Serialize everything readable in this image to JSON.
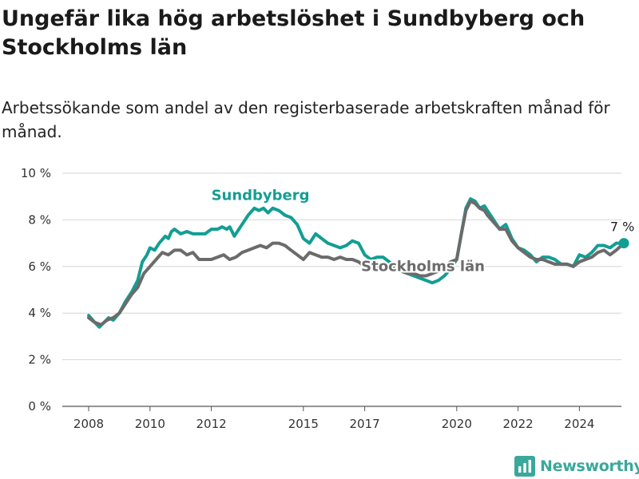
{
  "title": "Ungefär lika hög arbetslöshet i Sundbyberg och Stockholms län",
  "subtitle": "Arbetssökande som andel av den registerbaserade arbetskraften månad för månad.",
  "brand": {
    "name": "Newsworthy",
    "color": "#3aa89a"
  },
  "chart_data": {
    "type": "line",
    "ylim": [
      0,
      10
    ],
    "xlim": [
      2008,
      2025
    ],
    "y_ticks": [
      {
        "value": 0,
        "label": "0 %"
      },
      {
        "value": 2,
        "label": "2 %"
      },
      {
        "value": 4,
        "label": "4 %"
      },
      {
        "value": 6,
        "label": "6 %"
      },
      {
        "value": 8,
        "label": "8 %"
      },
      {
        "value": 10,
        "label": "10 %"
      }
    ],
    "x_ticks": [
      {
        "value": 2008,
        "label": "2008"
      },
      {
        "value": 2010,
        "label": "2010"
      },
      {
        "value": 2012,
        "label": "2012"
      },
      {
        "value": 2015,
        "label": "2015"
      },
      {
        "value": 2017,
        "label": "2017"
      },
      {
        "value": 2020,
        "label": "2020"
      },
      {
        "value": 2022,
        "label": "2022"
      },
      {
        "value": 2024,
        "label": "2024"
      }
    ],
    "grid": true,
    "end_label": "7 %",
    "series": [
      {
        "name": "Sundbyberg",
        "color": "#139e93",
        "points": [
          [
            2008.0,
            3.9
          ],
          [
            2008.2,
            3.6
          ],
          [
            2008.35,
            3.4
          ],
          [
            2008.5,
            3.6
          ],
          [
            2008.65,
            3.8
          ],
          [
            2008.8,
            3.7
          ],
          [
            2009.0,
            4.0
          ],
          [
            2009.2,
            4.5
          ],
          [
            2009.4,
            4.9
          ],
          [
            2009.6,
            5.4
          ],
          [
            2009.75,
            6.2
          ],
          [
            2009.9,
            6.5
          ],
          [
            2010.0,
            6.8
          ],
          [
            2010.15,
            6.7
          ],
          [
            2010.3,
            7.0
          ],
          [
            2010.5,
            7.3
          ],
          [
            2010.6,
            7.2
          ],
          [
            2010.7,
            7.5
          ],
          [
            2010.8,
            7.6
          ],
          [
            2011.0,
            7.4
          ],
          [
            2011.2,
            7.5
          ],
          [
            2011.4,
            7.4
          ],
          [
            2011.6,
            7.4
          ],
          [
            2011.8,
            7.4
          ],
          [
            2012.0,
            7.6
          ],
          [
            2012.2,
            7.6
          ],
          [
            2012.35,
            7.7
          ],
          [
            2012.5,
            7.6
          ],
          [
            2012.6,
            7.7
          ],
          [
            2012.75,
            7.3
          ],
          [
            2013.0,
            7.8
          ],
          [
            2013.2,
            8.2
          ],
          [
            2013.4,
            8.5
          ],
          [
            2013.55,
            8.4
          ],
          [
            2013.7,
            8.5
          ],
          [
            2013.85,
            8.3
          ],
          [
            2014.0,
            8.5
          ],
          [
            2014.2,
            8.4
          ],
          [
            2014.4,
            8.2
          ],
          [
            2014.6,
            8.1
          ],
          [
            2014.8,
            7.8
          ],
          [
            2015.0,
            7.2
          ],
          [
            2015.2,
            7.0
          ],
          [
            2015.4,
            7.4
          ],
          [
            2015.6,
            7.2
          ],
          [
            2015.8,
            7.0
          ],
          [
            2016.0,
            6.9
          ],
          [
            2016.2,
            6.8
          ],
          [
            2016.4,
            6.9
          ],
          [
            2016.6,
            7.1
          ],
          [
            2016.8,
            7.0
          ],
          [
            2017.0,
            6.5
          ],
          [
            2017.2,
            6.3
          ],
          [
            2017.4,
            6.4
          ],
          [
            2017.6,
            6.4
          ],
          [
            2017.8,
            6.2
          ],
          [
            2018.0,
            6.0
          ],
          [
            2018.2,
            5.8
          ],
          [
            2018.4,
            5.7
          ],
          [
            2018.6,
            5.6
          ],
          [
            2018.8,
            5.5
          ],
          [
            2019.0,
            5.4
          ],
          [
            2019.2,
            5.3
          ],
          [
            2019.4,
            5.4
          ],
          [
            2019.6,
            5.6
          ],
          [
            2019.8,
            5.9
          ],
          [
            2020.0,
            6.3
          ],
          [
            2020.15,
            7.4
          ],
          [
            2020.3,
            8.5
          ],
          [
            2020.45,
            8.9
          ],
          [
            2020.6,
            8.8
          ],
          [
            2020.75,
            8.5
          ],
          [
            2020.9,
            8.6
          ],
          [
            2021.0,
            8.4
          ],
          [
            2021.2,
            8.0
          ],
          [
            2021.4,
            7.6
          ],
          [
            2021.6,
            7.8
          ],
          [
            2021.8,
            7.2
          ],
          [
            2022.0,
            6.8
          ],
          [
            2022.2,
            6.7
          ],
          [
            2022.4,
            6.5
          ],
          [
            2022.6,
            6.2
          ],
          [
            2022.8,
            6.4
          ],
          [
            2023.0,
            6.4
          ],
          [
            2023.2,
            6.3
          ],
          [
            2023.4,
            6.1
          ],
          [
            2023.6,
            6.1
          ],
          [
            2023.8,
            6.0
          ],
          [
            2024.0,
            6.5
          ],
          [
            2024.2,
            6.4
          ],
          [
            2024.4,
            6.6
          ],
          [
            2024.6,
            6.9
          ],
          [
            2024.8,
            6.9
          ],
          [
            2025.0,
            6.8
          ],
          [
            2025.2,
            7.0
          ],
          [
            2025.45,
            7.0
          ]
        ]
      },
      {
        "name": "Stockholms län",
        "color": "#6b6b6b",
        "points": [
          [
            2008.0,
            3.8
          ],
          [
            2008.2,
            3.6
          ],
          [
            2008.4,
            3.5
          ],
          [
            2008.6,
            3.7
          ],
          [
            2008.8,
            3.8
          ],
          [
            2009.0,
            4.0
          ],
          [
            2009.2,
            4.4
          ],
          [
            2009.4,
            4.8
          ],
          [
            2009.6,
            5.1
          ],
          [
            2009.8,
            5.7
          ],
          [
            2010.0,
            6.0
          ],
          [
            2010.2,
            6.3
          ],
          [
            2010.4,
            6.6
          ],
          [
            2010.6,
            6.5
          ],
          [
            2010.8,
            6.7
          ],
          [
            2011.0,
            6.7
          ],
          [
            2011.2,
            6.5
          ],
          [
            2011.4,
            6.6
          ],
          [
            2011.6,
            6.3
          ],
          [
            2011.8,
            6.3
          ],
          [
            2012.0,
            6.3
          ],
          [
            2012.2,
            6.4
          ],
          [
            2012.4,
            6.5
          ],
          [
            2012.6,
            6.3
          ],
          [
            2012.8,
            6.4
          ],
          [
            2013.0,
            6.6
          ],
          [
            2013.2,
            6.7
          ],
          [
            2013.4,
            6.8
          ],
          [
            2013.6,
            6.9
          ],
          [
            2013.8,
            6.8
          ],
          [
            2014.0,
            7.0
          ],
          [
            2014.2,
            7.0
          ],
          [
            2014.4,
            6.9
          ],
          [
            2014.6,
            6.7
          ],
          [
            2014.8,
            6.5
          ],
          [
            2015.0,
            6.3
          ],
          [
            2015.2,
            6.6
          ],
          [
            2015.4,
            6.5
          ],
          [
            2015.6,
            6.4
          ],
          [
            2015.8,
            6.4
          ],
          [
            2016.0,
            6.3
          ],
          [
            2016.2,
            6.4
          ],
          [
            2016.4,
            6.3
          ],
          [
            2016.6,
            6.3
          ],
          [
            2016.8,
            6.2
          ],
          [
            2017.0,
            6.0
          ],
          [
            2017.2,
            6.1
          ],
          [
            2017.4,
            6.0
          ],
          [
            2017.6,
            6.1
          ],
          [
            2017.8,
            6.0
          ],
          [
            2018.0,
            5.9
          ],
          [
            2018.2,
            5.8
          ],
          [
            2018.4,
            5.7
          ],
          [
            2018.6,
            5.7
          ],
          [
            2018.8,
            5.6
          ],
          [
            2019.0,
            5.6
          ],
          [
            2019.2,
            5.7
          ],
          [
            2019.4,
            5.8
          ],
          [
            2019.6,
            6.0
          ],
          [
            2019.8,
            6.2
          ],
          [
            2020.0,
            6.3
          ],
          [
            2020.15,
            7.4
          ],
          [
            2020.3,
            8.4
          ],
          [
            2020.45,
            8.8
          ],
          [
            2020.6,
            8.7
          ],
          [
            2020.75,
            8.5
          ],
          [
            2020.9,
            8.4
          ],
          [
            2021.0,
            8.2
          ],
          [
            2021.2,
            7.9
          ],
          [
            2021.4,
            7.6
          ],
          [
            2021.6,
            7.6
          ],
          [
            2021.8,
            7.1
          ],
          [
            2022.0,
            6.8
          ],
          [
            2022.2,
            6.6
          ],
          [
            2022.4,
            6.4
          ],
          [
            2022.6,
            6.3
          ],
          [
            2022.8,
            6.3
          ],
          [
            2023.0,
            6.2
          ],
          [
            2023.2,
            6.1
          ],
          [
            2023.4,
            6.1
          ],
          [
            2023.6,
            6.1
          ],
          [
            2023.8,
            6.0
          ],
          [
            2024.0,
            6.2
          ],
          [
            2024.2,
            6.3
          ],
          [
            2024.4,
            6.4
          ],
          [
            2024.6,
            6.6
          ],
          [
            2024.8,
            6.7
          ],
          [
            2025.0,
            6.5
          ],
          [
            2025.2,
            6.7
          ],
          [
            2025.45,
            7.0
          ]
        ]
      }
    ],
    "annotations": [
      {
        "text": "Sundbyberg",
        "series": "Sundbyberg",
        "x": 2013.6,
        "y": 8.85
      },
      {
        "text": "Stockholms län",
        "series": "Stockholms län",
        "x": 2018.9,
        "y": 5.8
      }
    ]
  }
}
